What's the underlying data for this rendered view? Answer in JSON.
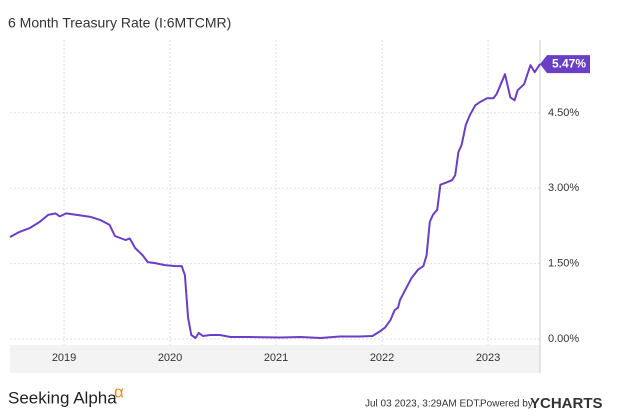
{
  "chart_data": {
    "type": "line",
    "title": "6 Month Treasury Rate (I:6MTCMR)",
    "x": [
      2018.49,
      2018.58,
      2018.68,
      2018.77,
      2018.85,
      2018.92,
      2018.96,
      2019.02,
      2019.25,
      2019.34,
      2019.43,
      2019.48,
      2019.58,
      2019.62,
      2019.67,
      2019.74,
      2019.79,
      2019.86,
      2019.95,
      2020.05,
      2020.11,
      2020.14,
      2020.17,
      2020.2,
      2020.24,
      2020.27,
      2020.31,
      2020.38,
      2020.47,
      2020.57,
      2020.75,
      2021.04,
      2021.23,
      2021.42,
      2021.6,
      2021.79,
      2021.91,
      2021.98,
      2022.03,
      2022.08,
      2022.12,
      2022.15,
      2022.17,
      2022.22,
      2022.28,
      2022.34,
      2022.39,
      2022.42,
      2022.45,
      2022.48,
      2022.52,
      2022.55,
      2022.59,
      2022.66,
      2022.69,
      2022.72,
      2022.75,
      2022.79,
      2022.83,
      2022.88,
      2022.92,
      2022.99,
      2023.05,
      2023.08,
      2023.16,
      2023.21,
      2023.25,
      2023.28,
      2023.34,
      2023.4,
      2023.44,
      2023.49
    ],
    "series": [
      {
        "name": "6 Month Treasury Rate",
        "color": "#6a3fc6",
        "values": [
          2.03,
          2.13,
          2.21,
          2.33,
          2.47,
          2.5,
          2.44,
          2.5,
          2.43,
          2.37,
          2.27,
          2.05,
          1.97,
          2.0,
          1.81,
          1.67,
          1.53,
          1.51,
          1.47,
          1.45,
          1.45,
          1.27,
          0.42,
          0.08,
          0.02,
          0.12,
          0.06,
          0.08,
          0.08,
          0.04,
          0.04,
          0.03,
          0.04,
          0.02,
          0.05,
          0.05,
          0.06,
          0.15,
          0.23,
          0.38,
          0.58,
          0.62,
          0.78,
          0.98,
          1.22,
          1.38,
          1.45,
          1.67,
          2.33,
          2.47,
          2.57,
          3.07,
          3.1,
          3.16,
          3.26,
          3.72,
          3.86,
          4.26,
          4.46,
          4.65,
          4.71,
          4.79,
          4.79,
          4.87,
          5.27,
          4.81,
          4.75,
          4.95,
          5.07,
          5.45,
          5.31,
          5.47
        ]
      }
    ],
    "annotation": {
      "value": 5.47,
      "label": "5.47%"
    },
    "xlim": [
      2018.49,
      2023.49
    ],
    "xticks": [
      2019,
      2020,
      2021,
      2022,
      2023
    ],
    "ylim": [
      -0.12,
      5.95
    ],
    "yticks": [
      {
        "value": 0,
        "label": "0.00%"
      },
      {
        "value": 1.5,
        "label": "1.50%"
      },
      {
        "value": 3,
        "label": "3.00%"
      },
      {
        "value": 4.5,
        "label": "4.50%"
      }
    ],
    "grid": true
  },
  "footer": {
    "brand": "Seeking Alpha",
    "brand_mark": "α",
    "timestamp": "Jul 03 2023, 3:29AM EDT.",
    "powered": "Powered by",
    "provider": "YCHARTS"
  }
}
